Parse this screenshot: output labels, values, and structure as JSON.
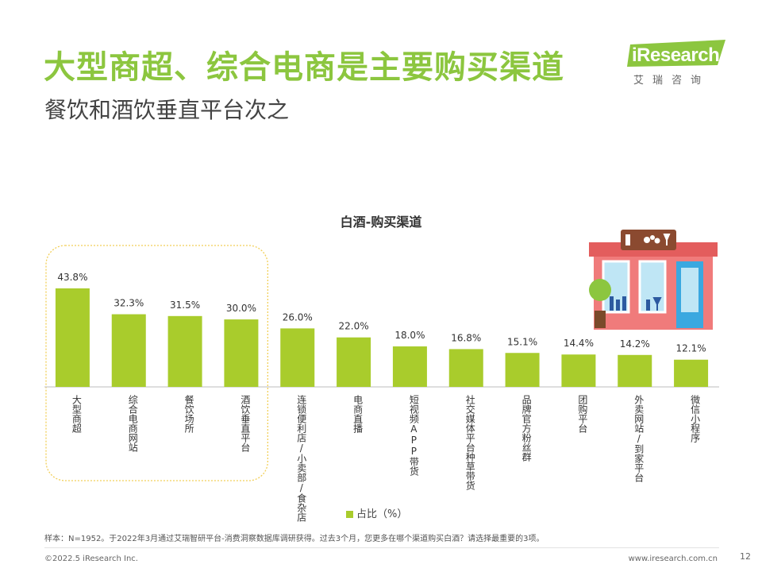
{
  "header": {
    "title": "大型商超、综合电商是主要购买渠道",
    "subtitle": "餐饮和酒饮垂直平台次之"
  },
  "logo": {
    "brand": "iResearch",
    "tagline": "艾瑞咨询"
  },
  "colors": {
    "title": "#8cc63f",
    "bar": "#a9cc2c",
    "highlight_border": "#f2cf58"
  },
  "chart_data": {
    "type": "bar",
    "title": "白酒-购买渠道",
    "categories": [
      "大型商超",
      "综合电商网站",
      "餐饮场所",
      "酒饮垂直平台",
      "连锁便利店/小卖部/食杂店",
      "电商直播",
      "短视频APP带货",
      "社交媒体平台种草带货",
      "品牌官方粉丝群",
      "团购平台",
      "外卖网站/到家平台",
      "微信小程序"
    ],
    "values": [
      43.8,
      32.3,
      31.5,
      30.0,
      26.0,
      22.0,
      18.0,
      16.8,
      15.1,
      14.4,
      14.2,
      12.1
    ],
    "value_labels": [
      "43.8%",
      "32.3%",
      "31.5%",
      "30.0%",
      "26.0%",
      "22.0%",
      "18.0%",
      "16.8%",
      "15.1%",
      "14.4%",
      "14.2%",
      "12.1%"
    ],
    "series": [
      {
        "name": "占比（%）"
      }
    ],
    "highlighted_categories": [
      "大型商超",
      "综合电商网站",
      "餐饮场所",
      "酒饮垂直平台"
    ],
    "legend_position": "bottom",
    "grid": false
  },
  "footer": {
    "note": "样本：N=1952。于2022年3月通过艾瑞智研平台-消费洞察数据库调研获得。过去3个月，您更多在哪个渠道购买白酒？请选择最重要的3项。",
    "copyright": "©2022.5 iResearch Inc.",
    "website": "www.iresearch.com.cn",
    "page": "12"
  }
}
